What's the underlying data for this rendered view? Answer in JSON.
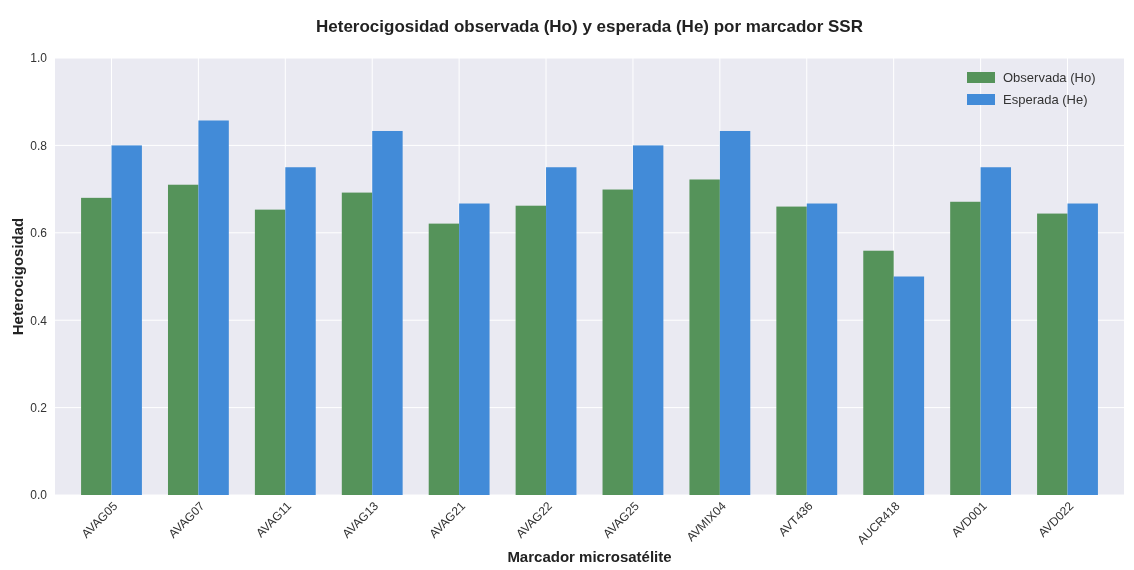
{
  "chart_data": {
    "type": "bar",
    "title": "Heterocigosidad observada (Ho) y esperada (He) por marcador SSR",
    "xlabel": "Marcador microsatélite",
    "ylabel": "Heterocigosidad",
    "categories": [
      "AVAG05",
      "AVAG07",
      "AVAG11",
      "AVAG13",
      "AVAG21",
      "AVAG22",
      "AVAG25",
      "AVMIX04",
      "AVT436",
      "AUCR418",
      "AVD001",
      "AVD022"
    ],
    "series": [
      {
        "name": "Observada (Ho)",
        "color": "#55935a",
        "values": [
          0.68,
          0.71,
          0.653,
          0.692,
          0.621,
          0.662,
          0.699,
          0.722,
          0.66,
          0.559,
          0.671,
          0.644
        ]
      },
      {
        "name": "Esperada (He)",
        "color": "#428bd8",
        "values": [
          0.8,
          0.857,
          0.75,
          0.833,
          0.667,
          0.75,
          0.8,
          0.833,
          0.667,
          0.5,
          0.75,
          0.667
        ]
      }
    ],
    "ylim": [
      0,
      1
    ],
    "yticks": [
      {
        "value": 0,
        "label": "0.0"
      },
      {
        "value": 0.2,
        "label": "0.2"
      },
      {
        "value": 0.4,
        "label": "0.4"
      },
      {
        "value": 0.6,
        "label": "0.6"
      },
      {
        "value": 0.8,
        "label": "0.8"
      },
      {
        "value": 1,
        "label": "1.0"
      }
    ],
    "grid": true,
    "legend": "top right"
  }
}
